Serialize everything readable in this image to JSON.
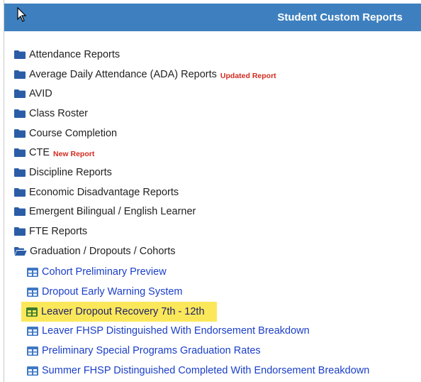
{
  "header": {
    "title": "Student Custom Reports"
  },
  "colors": {
    "header_bg": "#3e80bf",
    "folder": "#2b5da6",
    "badge": "#d12b1f",
    "link": "#1a3ec9",
    "highlight": "#fbe85a"
  },
  "folders": [
    {
      "label": "Attendance Reports",
      "badge": ""
    },
    {
      "label": "Average Daily Attendance (ADA) Reports",
      "badge": "Updated Report"
    },
    {
      "label": "AVID",
      "badge": ""
    },
    {
      "label": "Class Roster",
      "badge": ""
    },
    {
      "label": "Course Completion",
      "badge": ""
    },
    {
      "label": "CTE",
      "badge": "New Report"
    },
    {
      "label": "Discipline Reports",
      "badge": ""
    },
    {
      "label": "Economic Disadvantage Reports",
      "badge": ""
    },
    {
      "label": "Emergent Bilingual / English Learner",
      "badge": ""
    },
    {
      "label": "FTE Reports",
      "badge": ""
    },
    {
      "label": "Graduation / Dropouts / Cohorts",
      "badge": "",
      "open": true
    }
  ],
  "reports": [
    {
      "label": "Cohort Preliminary Preview"
    },
    {
      "label": "Dropout Early Warning System"
    },
    {
      "label": "Leaver Dropout Recovery 7th - 12th",
      "selected": true
    },
    {
      "label": "Leaver FHSP Distinguished With Endorsement Breakdown"
    },
    {
      "label": "Preliminary Special Programs Graduation Rates"
    },
    {
      "label": "Summer FHSP Distinguished Completed With Endorsement Breakdown"
    }
  ]
}
